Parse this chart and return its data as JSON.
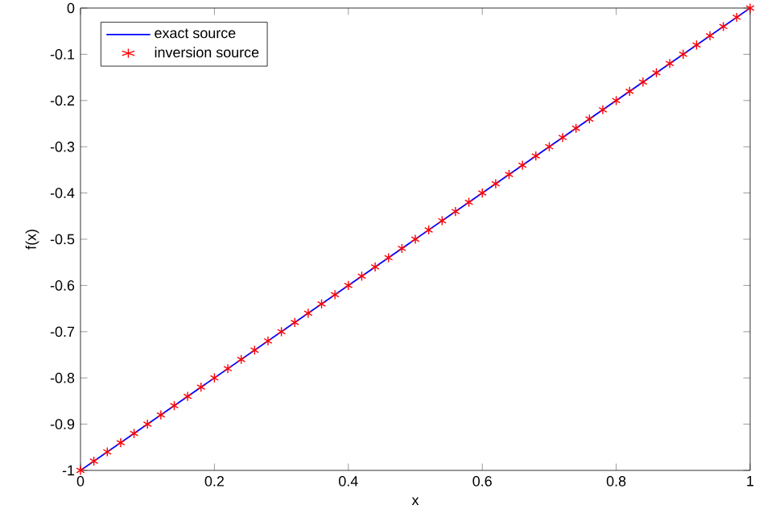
{
  "chart_data": {
    "type": "line",
    "xlabel": "x",
    "ylabel": "f(x)",
    "xlim": [
      0,
      1
    ],
    "ylim": [
      -1,
      0
    ],
    "xticks": [
      0,
      0.2,
      0.4,
      0.6,
      0.8,
      1
    ],
    "yticks": [
      -1,
      -0.9,
      -0.8,
      -0.7,
      -0.6,
      -0.5,
      -0.4,
      -0.3,
      -0.2,
      -0.1,
      0
    ],
    "grid": false,
    "legend": "top left",
    "series": [
      {
        "name": "exact source",
        "color": "#0000ff",
        "marker": "none",
        "x": [
          0,
          1
        ],
        "values": [
          -1,
          0
        ]
      },
      {
        "name": "inversion source",
        "color": "#ff0000",
        "type": "scatter",
        "marker": "cross",
        "x": [
          0,
          0.02,
          0.04,
          0.06,
          0.08,
          0.1,
          0.12,
          0.14,
          0.16,
          0.18,
          0.2,
          0.22,
          0.24,
          0.26,
          0.28,
          0.3,
          0.32,
          0.34,
          0.36,
          0.38,
          0.4,
          0.42,
          0.44,
          0.46,
          0.48,
          0.5,
          0.52,
          0.54,
          0.56,
          0.58,
          0.6,
          0.62,
          0.64,
          0.66,
          0.68,
          0.7,
          0.72,
          0.74,
          0.76,
          0.78,
          0.8,
          0.82,
          0.84,
          0.86,
          0.88,
          0.9,
          0.92,
          0.94,
          0.96,
          0.98,
          1
        ],
        "values": [
          -1,
          -0.98,
          -0.96,
          -0.94,
          -0.92,
          -0.9,
          -0.88,
          -0.86,
          -0.84,
          -0.82,
          -0.8,
          -0.78,
          -0.76,
          -0.74,
          -0.72,
          -0.7,
          -0.68,
          -0.66,
          -0.64,
          -0.62,
          -0.6,
          -0.58,
          -0.56,
          -0.54,
          -0.52,
          -0.5,
          -0.48,
          -0.46,
          -0.44,
          -0.42,
          -0.4,
          -0.38,
          -0.36,
          -0.34,
          -0.32,
          -0.3,
          -0.28,
          -0.26,
          -0.24,
          -0.22,
          -0.2,
          -0.18,
          -0.16,
          -0.14,
          -0.12,
          -0.1,
          -0.08,
          -0.06,
          -0.04,
          -0.02,
          0
        ]
      }
    ]
  }
}
